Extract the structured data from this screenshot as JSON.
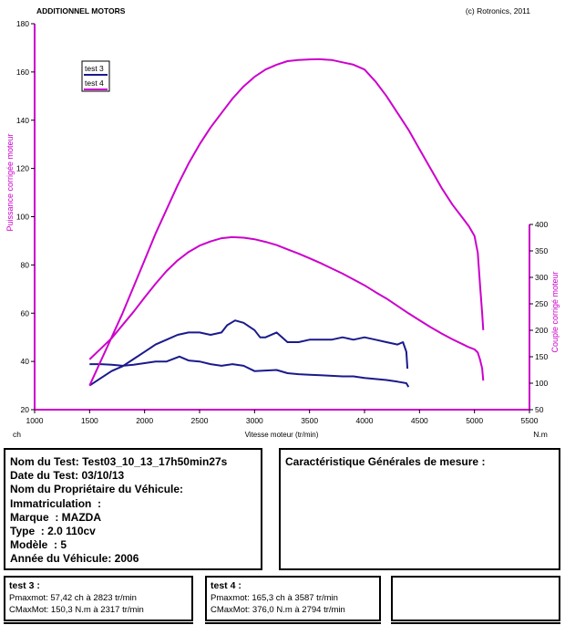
{
  "header": {
    "company": "ADDITIONNEL MOTORS",
    "copyright": "(c) Rotronics, 2011"
  },
  "chart_data": {
    "type": "line",
    "xlabel": "Vitesse moteur (tr/min)",
    "xunit_left": "ch",
    "xunit_right": "N.m",
    "ylabel_left": "Puissance corrigée moteur",
    "ylabel_right": "Couple corrigé moteur",
    "xlim": [
      1000,
      5500
    ],
    "ylim_left": [
      20,
      180
    ],
    "ylim_right": [
      50,
      400
    ],
    "x_ticks": [
      1000,
      1500,
      2000,
      2500,
      3000,
      3500,
      4000,
      4500,
      5000,
      5500
    ],
    "y_ticks_left": [
      20,
      40,
      60,
      80,
      100,
      120,
      140,
      160,
      180
    ],
    "y_ticks_right": [
      50,
      100,
      150,
      200,
      250,
      300,
      350,
      400
    ],
    "grid": false,
    "legend_position": "top-left",
    "legend": [
      {
        "name": "test 3",
        "color": "#1a1a8c"
      },
      {
        "name": "test 4",
        "color": "#cc00cc"
      }
    ],
    "series": [
      {
        "name": "test 3",
        "quantity": "power",
        "axis": "left",
        "color": "#1a1a8c",
        "x": [
          1500,
          1600,
          1700,
          1800,
          1900,
          2000,
          2100,
          2200,
          2300,
          2400,
          2500,
          2600,
          2700,
          2750,
          2823,
          2900,
          3000,
          3050,
          3100,
          3200,
          3300,
          3400,
          3500,
          3600,
          3700,
          3800,
          3900,
          4000,
          4100,
          4200,
          4300,
          4350,
          4380,
          4390
        ],
        "y": [
          30,
          33,
          36,
          38,
          41,
          44,
          47,
          49,
          51,
          52,
          52,
          51,
          52,
          55,
          57,
          56,
          53,
          50,
          50,
          52,
          48,
          48,
          49,
          49,
          49,
          50,
          49,
          50,
          49,
          48,
          47,
          48,
          44,
          37
        ]
      },
      {
        "name": "test 3",
        "quantity": "torque",
        "axis": "right",
        "color": "#1a1a8c",
        "x": [
          1500,
          1600,
          1700,
          1800,
          1900,
          2000,
          2100,
          2200,
          2317,
          2400,
          2500,
          2600,
          2700,
          2800,
          2900,
          3000,
          3100,
          3200,
          3300,
          3400,
          3500,
          3600,
          3700,
          3800,
          3900,
          4000,
          4100,
          4200,
          4300,
          4380,
          4400
        ],
        "y": [
          136,
          136,
          135,
          133,
          135,
          138,
          141,
          141,
          150.3,
          143,
          141,
          136,
          133,
          136,
          133,
          123,
          124,
          125,
          119,
          117,
          116,
          115,
          114,
          113,
          113,
          110,
          108,
          106,
          103,
          100,
          93
        ]
      },
      {
        "name": "test 4",
        "quantity": "power",
        "axis": "left",
        "color": "#cc00cc",
        "x": [
          1500,
          1600,
          1700,
          1800,
          1900,
          2000,
          2100,
          2200,
          2300,
          2400,
          2500,
          2600,
          2700,
          2800,
          2900,
          3000,
          3100,
          3200,
          3300,
          3400,
          3500,
          3587,
          3700,
          3800,
          3900,
          4000,
          4100,
          4200,
          4300,
          4400,
          4500,
          4600,
          4700,
          4800,
          4900,
          4950,
          5000,
          5030,
          5050,
          5070,
          5080
        ],
        "y": [
          30,
          40,
          50,
          60,
          71,
          82,
          93,
          103,
          113,
          122,
          130,
          137,
          143,
          149,
          154,
          158,
          161,
          163,
          164.5,
          165,
          165.2,
          165.3,
          165,
          164,
          163,
          161,
          156,
          150,
          143,
          136,
          128,
          120,
          112,
          105,
          99,
          96,
          92,
          85,
          72,
          60,
          53
        ]
      },
      {
        "name": "test 4",
        "quantity": "torque",
        "axis": "right",
        "color": "#cc00cc",
        "x": [
          1500,
          1600,
          1700,
          1800,
          1900,
          2000,
          2100,
          2200,
          2300,
          2400,
          2500,
          2600,
          2700,
          2794,
          2900,
          3000,
          3100,
          3200,
          3300,
          3400,
          3500,
          3600,
          3700,
          3800,
          3900,
          4000,
          4100,
          4200,
          4300,
          4400,
          4500,
          4600,
          4700,
          4800,
          4900,
          4950,
          5000,
          5030,
          5050,
          5070,
          5080
        ],
        "y": [
          145,
          165,
          185,
          210,
          235,
          262,
          288,
          312,
          332,
          348,
          360,
          368,
          374,
          376,
          375,
          372,
          367,
          361,
          353,
          345,
          336,
          327,
          317,
          307,
          296,
          285,
          272,
          260,
          246,
          232,
          219,
          206,
          194,
          183,
          173,
          168,
          164,
          158,
          145,
          128,
          105
        ]
      }
    ]
  },
  "info_left": {
    "lines": [
      "Nom du Test: Test03_10_13_17h50min27s",
      "Date du Test: 03/10/13",
      "Nom du Propriétaire du Véhicule:",
      "Immatriculation  :",
      "Marque  : MAZDA",
      "Type  : 2.0 110cv",
      "Modèle  : 5",
      "Année du Véhicule: 2006"
    ]
  },
  "info_right": {
    "title": "Caractéristique Générales de mesure :"
  },
  "results": [
    {
      "title": "test 3 :",
      "pmax": "Pmaxmot: 57,42 ch à 2823 tr/min",
      "cmax": "CMaxMot: 150,3 N.m à 2317 tr/min"
    },
    {
      "title": "test 4 :",
      "pmax": "Pmaxmot: 165,3 ch à 3587 tr/min",
      "cmax": "CMaxMot: 376,0 N.m à 2794 tr/min"
    }
  ]
}
